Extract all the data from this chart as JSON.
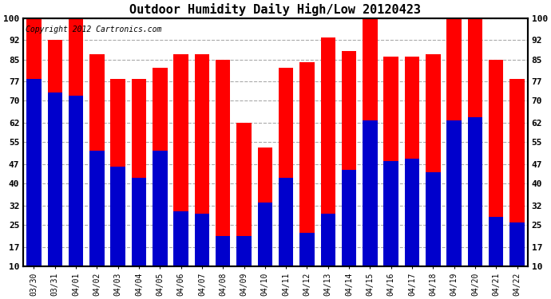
{
  "title": "Outdoor Humidity Daily High/Low 20120423",
  "copyright": "Copyright 2012 Cartronics.com",
  "categories": [
    "03/30",
    "03/31",
    "04/01",
    "04/02",
    "04/03",
    "04/04",
    "04/05",
    "04/06",
    "04/07",
    "04/08",
    "04/09",
    "04/10",
    "04/11",
    "04/12",
    "04/13",
    "04/14",
    "04/15",
    "04/16",
    "04/17",
    "04/18",
    "04/19",
    "04/20",
    "04/21",
    "04/22"
  ],
  "highs": [
    100,
    92,
    100,
    87,
    78,
    78,
    82,
    87,
    87,
    85,
    62,
    53,
    82,
    84,
    93,
    88,
    100,
    86,
    86,
    87,
    100,
    100,
    85,
    78
  ],
  "lows": [
    78,
    73,
    72,
    52,
    46,
    42,
    52,
    30,
    29,
    21,
    21,
    33,
    42,
    22,
    29,
    45,
    63,
    48,
    49,
    44,
    63,
    64,
    28,
    26
  ],
  "high_color": "#ff0000",
  "low_color": "#0000cc",
  "background_color": "#ffffff",
  "plot_bg_color": "#ffffff",
  "grid_color": "#aaaaaa",
  "yticks": [
    10,
    17,
    25,
    32,
    40,
    47,
    55,
    62,
    70,
    77,
    85,
    92,
    100
  ],
  "ymin": 10,
  "ymax": 100,
  "title_fontsize": 11,
  "copyright_fontsize": 7
}
